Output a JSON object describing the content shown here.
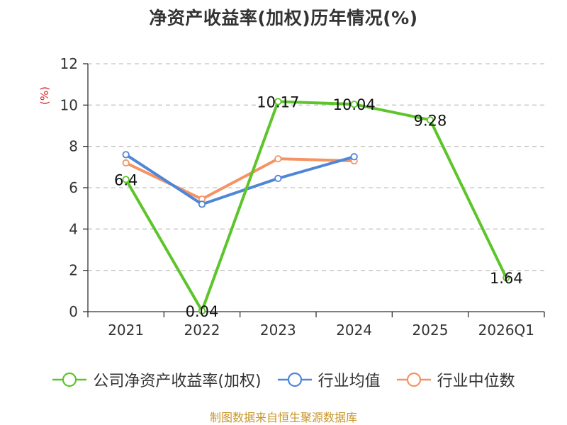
{
  "chart_data": {
    "type": "line",
    "title": "净资产收益率(加权)历年情况(%)",
    "unit_label": "(%)",
    "categories": [
      "2021",
      "2022",
      "2023",
      "2024",
      "2025",
      "2026Q1"
    ],
    "ylim": [
      0,
      12
    ],
    "yticks": [
      0,
      2,
      4,
      6,
      8,
      10,
      12
    ],
    "grid": true,
    "legend_position": "bottom",
    "series": [
      {
        "name": "公司净资产收益率(加权)",
        "color": "#5cc52a",
        "values": [
          6.4,
          0.04,
          10.17,
          10.04,
          9.28,
          1.64
        ],
        "labels": [
          "6.4",
          "0.04",
          "10.17",
          "10.04",
          "9.28",
          "1.64"
        ]
      },
      {
        "name": "行业均值",
        "color": "#4e86d8",
        "values": [
          7.6,
          5.2,
          6.45,
          7.5,
          null,
          null
        ],
        "labels": null
      },
      {
        "name": "行业中位数",
        "color": "#f49363",
        "values": [
          7.2,
          5.45,
          7.4,
          7.3,
          null,
          null
        ],
        "labels": null
      }
    ]
  },
  "source": "制图数据来自恒生聚源数据库"
}
